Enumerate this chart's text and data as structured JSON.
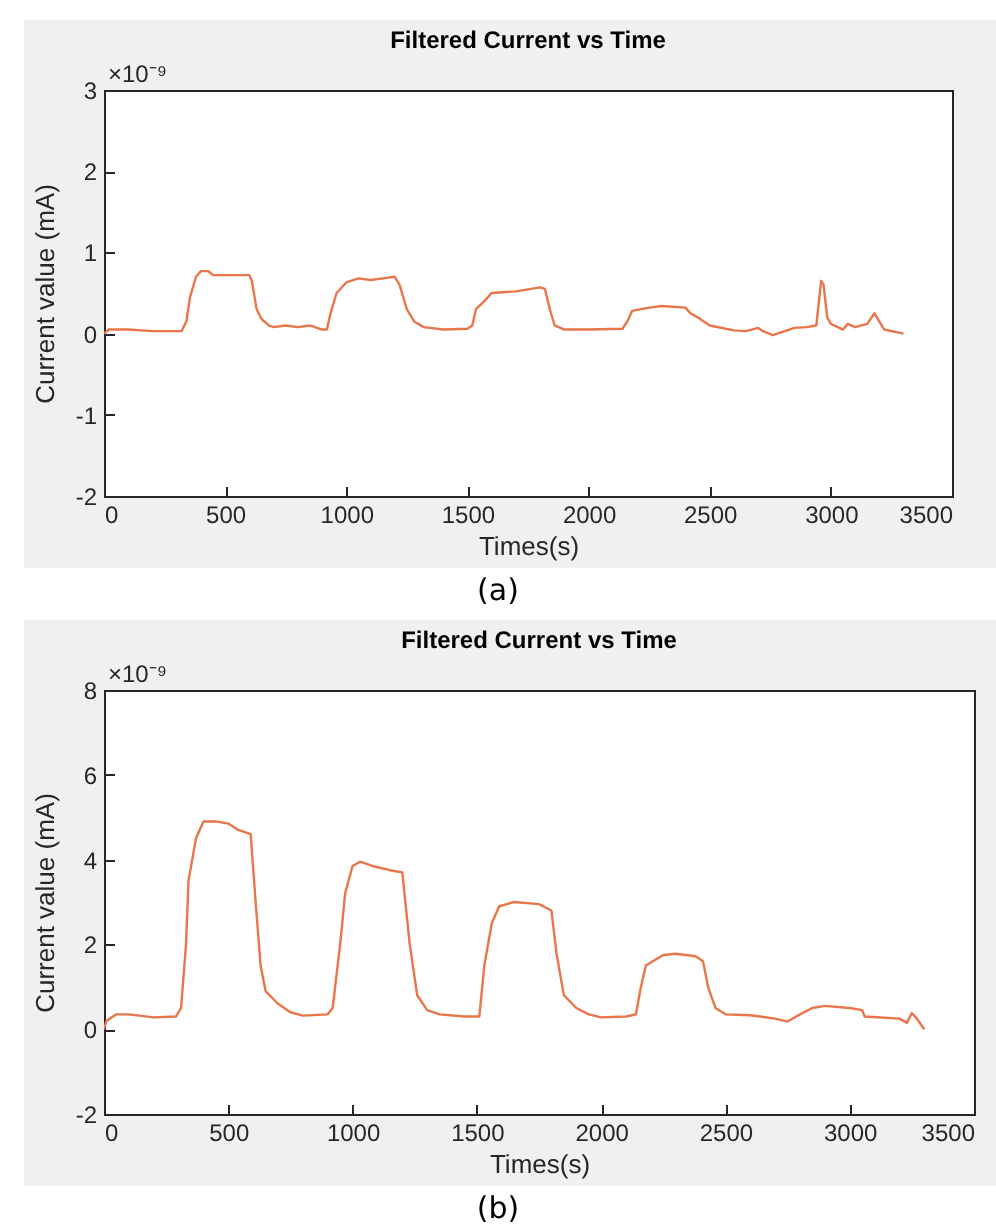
{
  "chart_data": [
    {
      "type": "line",
      "title": "Filtered Current vs Time",
      "xlabel": "Times(s)",
      "ylabel": "Current value (mA)",
      "annotations": [
        "×10⁻⁹",
        "(a)"
      ],
      "xlim": [
        0,
        3500
      ],
      "xticks": [
        0,
        500,
        1000,
        1500,
        2000,
        2500,
        3000,
        3500
      ],
      "ylim": [
        -2,
        3
      ],
      "yticks": [
        -2,
        -1,
        0,
        1,
        2,
        3
      ],
      "grid": false,
      "series": [
        {
          "color": "#e8764a",
          "x": [
            0,
            20,
            100,
            200,
            320,
            340,
            355,
            380,
            400,
            430,
            450,
            500,
            600,
            610,
            630,
            650,
            680,
            700,
            750,
            800,
            850,
            900,
            920,
            935,
            960,
            1000,
            1050,
            1100,
            1150,
            1200,
            1220,
            1250,
            1280,
            1320,
            1400,
            1500,
            1520,
            1535,
            1570,
            1600,
            1700,
            1800,
            1820,
            1840,
            1860,
            1900,
            2000,
            2140,
            2160,
            2180,
            2250,
            2300,
            2400,
            2420,
            2450,
            2500,
            2600,
            2650,
            2700,
            2720,
            2760,
            2800,
            2850,
            2900,
            2940,
            2960,
            2970,
            2985,
            3000,
            3050,
            3070,
            3100,
            3150,
            3180,
            3200,
            3220,
            3300
          ],
          "values": [
            0.0,
            0.05,
            0.05,
            0.03,
            0.03,
            0.15,
            0.45,
            0.7,
            0.77,
            0.77,
            0.72,
            0.72,
            0.72,
            0.65,
            0.3,
            0.18,
            0.1,
            0.08,
            0.1,
            0.08,
            0.1,
            0.05,
            0.05,
            0.25,
            0.5,
            0.63,
            0.68,
            0.66,
            0.68,
            0.7,
            0.6,
            0.3,
            0.15,
            0.08,
            0.05,
            0.06,
            0.1,
            0.3,
            0.4,
            0.5,
            0.52,
            0.57,
            0.55,
            0.3,
            0.1,
            0.05,
            0.05,
            0.06,
            0.15,
            0.28,
            0.32,
            0.34,
            0.32,
            0.25,
            0.2,
            0.1,
            0.04,
            0.03,
            0.07,
            0.03,
            -0.02,
            0.02,
            0.07,
            0.08,
            0.1,
            0.65,
            0.6,
            0.2,
            0.12,
            0.05,
            0.12,
            0.08,
            0.12,
            0.25,
            0.15,
            0.05,
            0.0
          ]
        }
      ]
    },
    {
      "type": "line",
      "title": "Filtered Current vs Time",
      "xlabel": "Times(s)",
      "ylabel": "Current value (mA)",
      "annotations": [
        "×10⁻⁹",
        "(b)"
      ],
      "xlim": [
        0,
        3500
      ],
      "xticks": [
        0,
        500,
        1000,
        1500,
        2000,
        2500,
        3000,
        3500
      ],
      "ylim": [
        -2,
        8
      ],
      "yticks": [
        -2,
        0,
        2,
        4,
        6,
        8
      ],
      "grid": false,
      "series": [
        {
          "color": "#e8764a",
          "x": [
            0,
            10,
            50,
            100,
            200,
            290,
            310,
            330,
            340,
            370,
            400,
            450,
            500,
            540,
            590,
            610,
            630,
            650,
            700,
            750,
            800,
            900,
            920,
            950,
            970,
            1000,
            1030,
            1080,
            1150,
            1200,
            1230,
            1260,
            1300,
            1350,
            1450,
            1510,
            1530,
            1560,
            1590,
            1650,
            1750,
            1800,
            1820,
            1850,
            1900,
            1950,
            2000,
            2100,
            2140,
            2160,
            2180,
            2250,
            2300,
            2380,
            2410,
            2430,
            2460,
            2500,
            2600,
            2700,
            2750,
            2800,
            2850,
            2900,
            3000,
            3050,
            3060,
            3200,
            3230,
            3250,
            3270,
            3300
          ],
          "values": [
            0,
            0.2,
            0.35,
            0.35,
            0.28,
            0.3,
            0.5,
            2.0,
            3.5,
            4.5,
            4.9,
            4.9,
            4.85,
            4.7,
            4.6,
            3.0,
            1.5,
            0.9,
            0.6,
            0.4,
            0.32,
            0.35,
            0.5,
            2.0,
            3.2,
            3.85,
            3.95,
            3.85,
            3.75,
            3.7,
            2.0,
            0.8,
            0.45,
            0.35,
            0.3,
            0.3,
            1.5,
            2.5,
            2.9,
            3.0,
            2.95,
            2.8,
            1.8,
            0.8,
            0.5,
            0.35,
            0.28,
            0.3,
            0.35,
            1.0,
            1.5,
            1.75,
            1.78,
            1.72,
            1.6,
            1.0,
            0.5,
            0.35,
            0.33,
            0.25,
            0.18,
            0.35,
            0.5,
            0.55,
            0.5,
            0.45,
            0.3,
            0.25,
            0.15,
            0.38,
            0.25,
            0.0
          ]
        }
      ]
    }
  ]
}
